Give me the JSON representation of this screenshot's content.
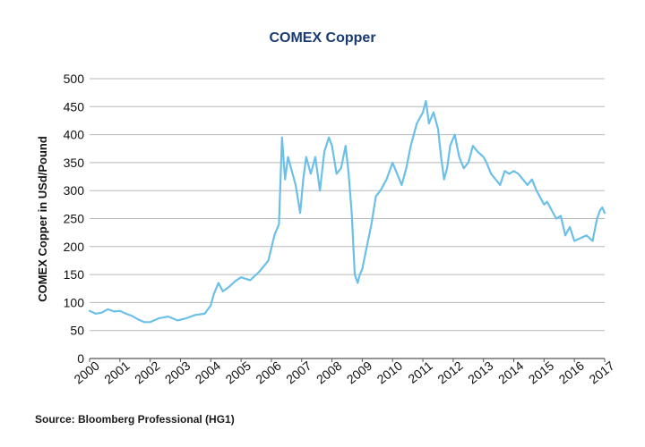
{
  "chart_data": {
    "type": "line",
    "title": "COMEX Copper",
    "ylabel": "COMEX Copper in USd/Pound",
    "xlabel": "",
    "source": "Source: Bloomberg Professional (HG1)",
    "ylim": [
      0,
      500
    ],
    "xlim": [
      2000,
      2017
    ],
    "yticks": [
      "0",
      "50",
      "100",
      "150",
      "200",
      "250",
      "300",
      "350",
      "400",
      "450",
      "500"
    ],
    "xticks": [
      "2000",
      "2001",
      "2002",
      "2003",
      "2004",
      "2005",
      "2006",
      "2007",
      "2008",
      "2009",
      "2010",
      "2011",
      "2012",
      "2013",
      "2014",
      "2015",
      "2016",
      "2017"
    ],
    "grid": true,
    "series_color": "#6cc0e8",
    "series": [
      {
        "x": [
          2000.0,
          2000.2,
          2000.4,
          2000.6,
          2000.8,
          2001.0,
          2001.2,
          2001.4,
          2001.6,
          2001.8,
          2002.0,
          2002.3,
          2002.6,
          2002.9,
          2003.2,
          2003.5,
          2003.8,
          2004.0,
          2004.1,
          2004.25,
          2004.4,
          2004.6,
          2004.8,
          2005.0,
          2005.3,
          2005.6,
          2005.9,
          2006.1,
          2006.25,
          2006.35,
          2006.45,
          2006.55,
          2006.65,
          2006.8,
          2006.95,
          2007.05,
          2007.15,
          2007.3,
          2007.45,
          2007.6,
          2007.75,
          2007.9,
          2008.0,
          2008.15,
          2008.3,
          2008.45,
          2008.55,
          2008.65,
          2008.75,
          2008.85,
          2008.92,
          2009.0,
          2009.15,
          2009.3,
          2009.45,
          2009.6,
          2009.8,
          2010.0,
          2010.15,
          2010.3,
          2010.45,
          2010.6,
          2010.8,
          2011.0,
          2011.1,
          2011.2,
          2011.35,
          2011.5,
          2011.6,
          2011.7,
          2011.8,
          2011.9,
          2012.05,
          2012.2,
          2012.35,
          2012.5,
          2012.65,
          2012.8,
          2013.0,
          2013.1,
          2013.25,
          2013.4,
          2013.55,
          2013.7,
          2013.85,
          2014.0,
          2014.15,
          2014.3,
          2014.45,
          2014.6,
          2014.75,
          2014.9,
          2015.0,
          2015.1,
          2015.25,
          2015.4,
          2015.55,
          2015.7,
          2015.85,
          2016.0,
          2016.2,
          2016.4,
          2016.6,
          2016.75,
          2016.85,
          2016.92,
          2017.0
        ],
        "values": [
          85,
          80,
          82,
          88,
          84,
          85,
          80,
          76,
          70,
          65,
          65,
          72,
          75,
          68,
          72,
          78,
          80,
          95,
          115,
          135,
          120,
          128,
          138,
          145,
          140,
          155,
          175,
          220,
          240,
          395,
          320,
          360,
          340,
          310,
          260,
          320,
          360,
          330,
          360,
          300,
          370,
          395,
          380,
          330,
          340,
          380,
          330,
          260,
          150,
          135,
          150,
          160,
          200,
          240,
          290,
          300,
          320,
          350,
          330,
          310,
          340,
          380,
          420,
          440,
          460,
          420,
          440,
          410,
          360,
          320,
          340,
          380,
          400,
          360,
          340,
          350,
          380,
          370,
          360,
          350,
          330,
          320,
          310,
          335,
          330,
          335,
          330,
          320,
          310,
          320,
          300,
          285,
          275,
          280,
          265,
          250,
          255,
          220,
          235,
          210,
          215,
          220,
          210,
          250,
          265,
          270,
          260
        ]
      }
    ]
  }
}
